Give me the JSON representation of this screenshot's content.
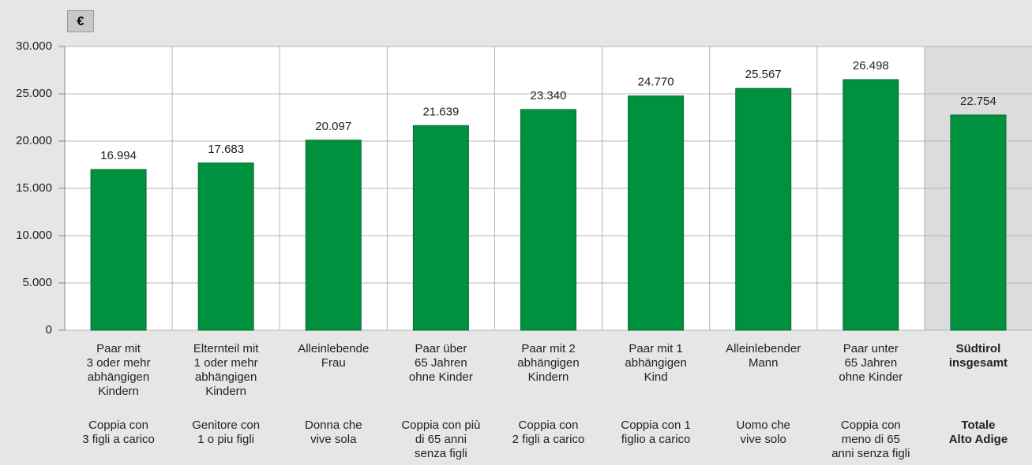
{
  "chart_data": {
    "type": "bar",
    "unit_label": "€",
    "categories": [
      "Paar mit\n3 oder mehr\nabhängigen\nKindern",
      "Elternteil mit\n1 oder mehr\nabhängigen\nKindern",
      "Alleinlebende\nFrau",
      "Paar über\n65 Jahren\nohne Kinder",
      "Paar mit 2\nabhängigen\nKindern",
      "Paar mit 1\nabhängigen\nKind",
      "Alleinlebender\nMann",
      "Paar unter\n65 Jahren\nohne Kinder",
      "Südtirol\ninsgesamt"
    ],
    "categories_it": [
      "Coppia con\n3 figli a carico",
      "Genitore con\n1 o piu figli",
      "Donna che\nvive sola",
      "Coppia con più\ndi 65 anni\nsenza figli",
      "Coppia con\n2 figli a carico",
      "Coppia con 1\nfiglio a carico",
      "Uomo che\nvive solo",
      "Coppia con\nmeno di 65\nanni senza figli",
      "Totale\nAlto Adige"
    ],
    "values": [
      16994,
      17683,
      20097,
      21639,
      23340,
      24770,
      25567,
      26498,
      22754
    ],
    "value_labels": [
      "16.994",
      "17.683",
      "20.097",
      "21.639",
      "23.340",
      "24.770",
      "25.567",
      "26.498",
      "22.754"
    ],
    "color": "#00913f",
    "highlight_index": 8,
    "ylim": [
      0,
      30000
    ],
    "yticks": [
      0,
      {
        "value": 5000,
        "label": "5.000"
      },
      {
        "value": 10000,
        "label": "10.000"
      },
      {
        "value": 15000,
        "label": "15.000"
      },
      {
        "value": 20000,
        "label": "20.000"
      },
      {
        "value": 25000,
        "label": "25.000"
      },
      {
        "value": 30000,
        "label": "30.000"
      }
    ],
    "grid": true
  }
}
